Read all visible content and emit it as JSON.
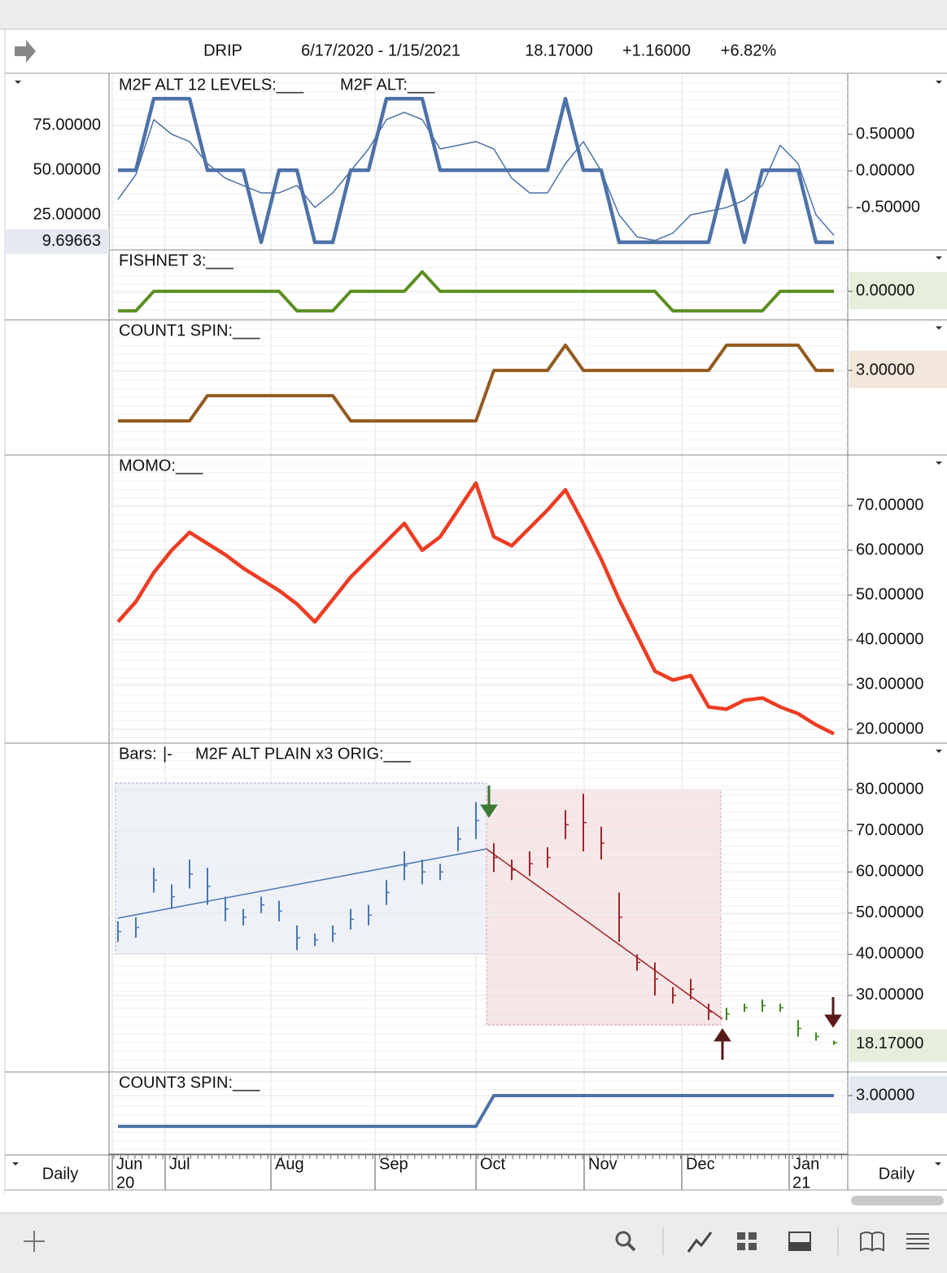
{
  "header": {
    "symbol": "DRIP",
    "range": "6/17/2020 - 1/15/2021",
    "price": "18.17000",
    "change": "+1.16000",
    "change_pct": "+6.82%"
  },
  "time_axis": {
    "months": [
      "Jun",
      "Jul",
      "Aug",
      "Sep",
      "Oct",
      "Nov",
      "Dec",
      "Jan"
    ],
    "years": [
      "20",
      "21"
    ],
    "period_left": "Daily",
    "period_right": "Daily"
  },
  "chart_data": [
    {
      "type": "line",
      "ylim": [
        5.9,
        103.3
      ],
      "y2lim": [
        -1.067,
        1.311
      ],
      "yticks": [
        {
          "value": 75,
          "label": "75.00000"
        },
        {
          "value": 50,
          "label": "50.00000"
        },
        {
          "value": 25,
          "label": "25.00000"
        }
      ],
      "y2ticks": [
        {
          "value": 0.5,
          "label": "0.50000"
        },
        {
          "value": 0,
          "label": "0.00000"
        },
        {
          "value": -0.5,
          "label": "-0.50000"
        }
      ],
      "series": [
        {
          "name": "M2F ALT 12 LEVELS:___",
          "color": "#4d72a8",
          "width": 4.5,
          "values": [
            50,
            50,
            90,
            90,
            90,
            50,
            50,
            50,
            9.69663,
            50,
            50,
            9.69663,
            9.69663,
            50,
            50,
            90,
            90,
            90,
            50,
            50,
            50,
            50,
            50,
            50,
            50,
            90,
            50,
            50,
            9.69663,
            9.69663,
            9.69663,
            9.69663,
            9.69663,
            9.69663,
            50,
            9.69663,
            50,
            50,
            50,
            9.69663,
            9.69663
          ]
        },
        {
          "name": "M2F ALT:___",
          "color": "#4d72a8",
          "width": 1.5,
          "axis": "y2",
          "values": [
            -0.39,
            -0.05,
            0.7,
            0.5,
            0.4,
            0.1,
            -0.1,
            -0.2,
            -0.3,
            -0.3,
            -0.2,
            -0.5,
            -0.3,
            0,
            0.3,
            0.7,
            0.8,
            0.7,
            0.3,
            0.35,
            0.4,
            0.3,
            -0.1,
            -0.3,
            -0.3,
            0.1,
            0.4,
            0,
            -0.6,
            -0.9,
            -0.95,
            -0.85,
            -0.6,
            -0.55,
            -0.5,
            -0.4,
            -0.2,
            0.35,
            0.1,
            -0.6,
            -0.88
          ]
        }
      ]
    },
    {
      "type": "line",
      "ylim": [
        -1.42,
        2.08
      ],
      "yticks": [
        {
          "value": 0,
          "label": "0.00000"
        }
      ],
      "tick_box": "#e6efdc",
      "series": [
        {
          "name": "FISHNET 3:___",
          "color": "#5b8f22",
          "width": 4,
          "values": [
            -1,
            -1,
            0,
            0,
            0,
            0,
            0,
            0,
            0,
            0,
            -1,
            -1,
            -1,
            0,
            0,
            0,
            0,
            1,
            0,
            0,
            0,
            0,
            0,
            0,
            0,
            0,
            0,
            0,
            0,
            0,
            0,
            -1,
            -1,
            -1,
            -1,
            -1,
            -1,
            0,
            0,
            0,
            0
          ]
        }
      ]
    },
    {
      "type": "line",
      "ylim": [
        -0.32,
        4.97
      ],
      "yticks": [
        {
          "value": 3,
          "label": "3.00000"
        }
      ],
      "tick_box": "#f3e6da",
      "series": [
        {
          "name": "COUNT1 SPIN:___",
          "color": "#935a1f",
          "width": 4,
          "values": [
            1,
            1,
            1,
            1,
            1,
            2,
            2,
            2,
            2,
            2,
            2,
            2,
            2,
            1,
            1,
            1,
            1,
            1,
            1,
            1,
            1,
            3,
            3,
            3,
            3,
            4,
            3,
            3,
            3,
            3,
            3,
            3,
            3,
            3,
            4,
            4,
            4,
            4,
            4,
            3,
            3
          ]
        }
      ]
    },
    {
      "type": "line",
      "ylim": [
        17.1,
        81.1
      ],
      "yticks": [
        {
          "value": 70,
          "label": "70.00000"
        },
        {
          "value": 60,
          "label": "60.00000"
        },
        {
          "value": 50,
          "label": "50.00000"
        },
        {
          "value": 40,
          "label": "40.00000"
        },
        {
          "value": 30,
          "label": "30.00000"
        },
        {
          "value": 20,
          "label": "20.00000"
        }
      ],
      "series": [
        {
          "name": "MOMO:___",
          "color": "#ee3c23",
          "width": 4.5,
          "values": [
            44,
            48.5,
            55,
            60,
            64,
            61.5,
            59,
            56,
            53.5,
            51,
            48,
            44,
            49,
            54,
            58,
            62,
            66,
            60,
            63,
            69,
            75,
            63,
            61,
            65,
            69,
            73.5,
            66,
            58,
            49,
            41,
            33,
            31,
            32,
            25,
            24.5,
            26.5,
            27,
            25,
            23.5,
            21,
            19
          ]
        }
      ]
    },
    {
      "type": "bar",
      "title": "Bars:",
      "symbol": "|-",
      "study": "M2F ALT PLAIN x3 ORIG:___",
      "ylim": [
        11.6,
        91.1
      ],
      "yticks": [
        {
          "value": 80,
          "label": "80.00000"
        },
        {
          "value": 70,
          "label": "70.00000"
        },
        {
          "value": 60,
          "label": "60.00000"
        },
        {
          "value": 50,
          "label": "50.00000"
        },
        {
          "value": 40,
          "label": "40.00000"
        },
        {
          "value": 30,
          "label": "30.00000"
        }
      ],
      "series": [
        {
          "color": "#4778b5",
          "high": [
            48,
            49,
            61,
            57,
            63,
            61,
            54,
            51,
            54,
            53,
            47,
            45,
            47,
            51,
            52,
            58,
            65,
            63,
            62,
            71,
            77,
            null,
            null,
            null,
            null,
            null,
            null,
            null,
            null,
            null,
            null,
            null,
            null,
            null,
            null,
            null,
            null,
            null,
            null,
            null,
            null
          ],
          "low": [
            43,
            44,
            55,
            51,
            56,
            52,
            48,
            47,
            50,
            48,
            41,
            42,
            43,
            46,
            47,
            52,
            58,
            57,
            58,
            65,
            68,
            null,
            null,
            null,
            null,
            null,
            null,
            null,
            null,
            null,
            null,
            null,
            null,
            null,
            null,
            null,
            null,
            null,
            null,
            null,
            null
          ]
        },
        {
          "color": "#a0252b",
          "high": [
            null,
            null,
            null,
            null,
            null,
            null,
            null,
            null,
            null,
            null,
            null,
            null,
            null,
            null,
            null,
            null,
            null,
            null,
            null,
            null,
            null,
            67,
            63,
            65,
            66,
            75,
            79,
            71,
            55,
            40,
            38,
            32,
            34,
            28,
            null,
            null,
            null,
            null,
            null,
            null,
            null
          ],
          "low": [
            null,
            null,
            null,
            null,
            null,
            null,
            null,
            null,
            null,
            null,
            null,
            null,
            null,
            null,
            null,
            null,
            null,
            null,
            null,
            null,
            null,
            60,
            58,
            59,
            61,
            68,
            65,
            63,
            43,
            36,
            30,
            28,
            29,
            24,
            null,
            null,
            null,
            null,
            null,
            null,
            null
          ]
        },
        {
          "color": "#3a8a1e",
          "high": [
            null,
            null,
            null,
            null,
            null,
            null,
            null,
            null,
            null,
            null,
            null,
            null,
            null,
            null,
            null,
            null,
            null,
            null,
            null,
            null,
            null,
            null,
            null,
            null,
            null,
            null,
            null,
            null,
            null,
            null,
            null,
            null,
            null,
            null,
            27,
            28,
            29,
            28,
            24,
            21,
            19
          ],
          "low": [
            null,
            null,
            null,
            null,
            null,
            null,
            null,
            null,
            null,
            null,
            null,
            null,
            null,
            null,
            null,
            null,
            null,
            null,
            null,
            null,
            null,
            null,
            null,
            null,
            null,
            null,
            null,
            null,
            null,
            null,
            null,
            null,
            null,
            null,
            24,
            26,
            26,
            26,
            20,
            19,
            18
          ]
        }
      ]
    },
    {
      "type": "line",
      "ylim": [
        1.1,
        3.74
      ],
      "yticks": [
        {
          "value": 3,
          "label": "3.00000"
        }
      ],
      "tick_box": "#e4e9f2",
      "series": [
        {
          "name": "COUNT3 SPIN:___",
          "color": "#4d72a8",
          "width": 4,
          "values": [
            2,
            2,
            2,
            2,
            2,
            2,
            2,
            2,
            2,
            2,
            2,
            2,
            2,
            2,
            2,
            2,
            2,
            2,
            2,
            2,
            2,
            3,
            3,
            3,
            3,
            3,
            3,
            3,
            3,
            3,
            3,
            3,
            3,
            3,
            3,
            3,
            3,
            3,
            3,
            3,
            3
          ]
        }
      ]
    }
  ]
}
